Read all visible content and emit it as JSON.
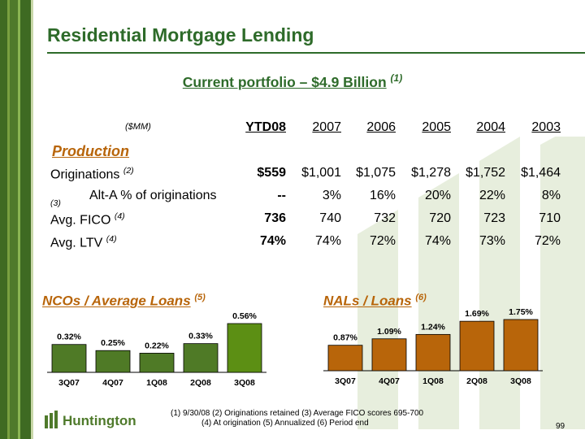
{
  "title": "Residential Mortgage Lending",
  "subtitle": {
    "text": "Current portfolio – $4.9 Billion",
    "note": "(1)"
  },
  "table": {
    "unit_label": "($MM)",
    "columns": [
      "YTD08",
      "2007",
      "2006",
      "2005",
      "2004",
      "2003"
    ],
    "section_label": "Production",
    "rows": [
      {
        "label": "Originations",
        "note": "(2)",
        "values": [
          "$559",
          "$1,001",
          "$1,075",
          "$1,278",
          "$1,752",
          "$1,464"
        ]
      },
      {
        "label": "Alt-A % of originations",
        "note": "(3)",
        "values": [
          "--",
          "3%",
          "16%",
          "20%",
          "22%",
          "8%"
        ]
      },
      {
        "label": "Avg. FICO",
        "note": "(4)",
        "values": [
          "736",
          "740",
          "732",
          "720",
          "723",
          "710"
        ]
      },
      {
        "label": "Avg. LTV",
        "note": "(4)",
        "values": [
          "74%",
          "74%",
          "72%",
          "74%",
          "73%",
          "72%"
        ]
      }
    ]
  },
  "chart_data": [
    {
      "type": "bar",
      "title": "NCOs / Average Loans",
      "title_note": "(5)",
      "categories": [
        "3Q07",
        "4Q07",
        "1Q08",
        "2Q08",
        "3Q08"
      ],
      "values": [
        0.32,
        0.25,
        0.22,
        0.33,
        0.56
      ],
      "labels": [
        "0.32%",
        "0.25%",
        "0.22%",
        "0.33%",
        "0.56%"
      ],
      "ylim": [
        0,
        0.56
      ],
      "colors": [
        "#4f7a26",
        "#4f7a26",
        "#4f7a26",
        "#4f7a26",
        "#5c8f14"
      ]
    },
    {
      "type": "bar",
      "title": "NALs / Loans",
      "title_note": "(6)",
      "categories": [
        "3Q07",
        "4Q07",
        "1Q08",
        "2Q08",
        "3Q08"
      ],
      "values": [
        0.87,
        1.09,
        1.24,
        1.69,
        1.75
      ],
      "labels": [
        "0.87%",
        "1.09%",
        "1.24%",
        "1.69%",
        "1.75%"
      ],
      "ylim": [
        0,
        1.75
      ],
      "colors": [
        "#b8650a",
        "#b8650a",
        "#b8650a",
        "#b8650a",
        "#b8650a"
      ]
    }
  ],
  "logo_text": "Huntington",
  "footnotes": {
    "line1": "(1)  9/30/08   (2)  Originations retained   (3)  Average FICO scores 695-700",
    "line2": "(4)  At origination   (5)  Annualized   (6) Period end"
  },
  "page_number": "99",
  "colors": {
    "green": "#2e6b2a",
    "orange": "#b8650a"
  }
}
